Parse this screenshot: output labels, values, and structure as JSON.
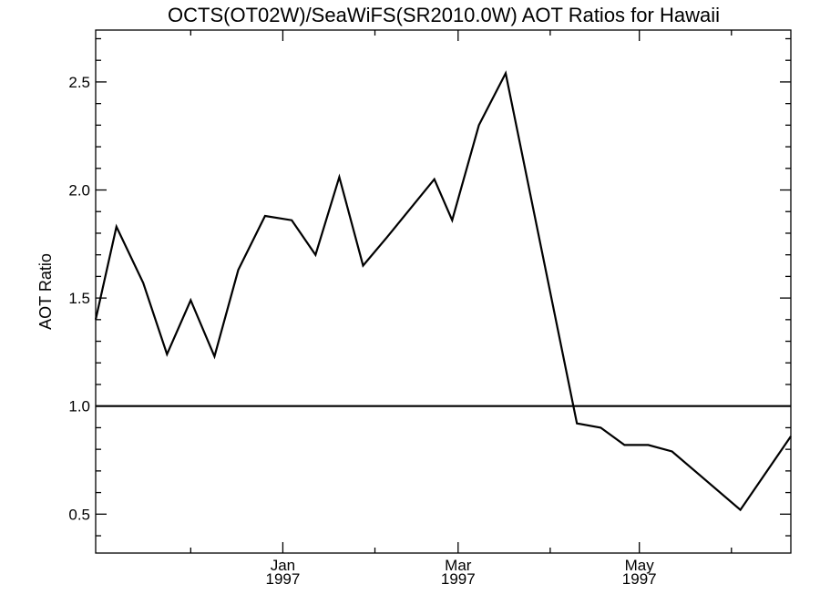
{
  "chart_data": {
    "type": "line",
    "title": "OCTS(OT02W)/SeaWiFS(SR2010.0W)  AOT Ratios for Hawaii",
    "xlabel": "",
    "ylabel": "AOT Ratio",
    "xlim": [
      "1996-10-30",
      "1997-06-21"
    ],
    "ylim": [
      0.32,
      2.74
    ],
    "yticks": [
      0.5,
      1.0,
      1.5,
      2.0,
      2.5
    ],
    "ytick_labels": [
      "0.5",
      "1.0",
      "1.5",
      "2.0",
      "2.5"
    ],
    "xticks": [
      {
        "date": "1997-01-01",
        "month": "Jan",
        "year": "1997"
      },
      {
        "date": "1997-03-01",
        "month": "Mar",
        "year": "1997"
      },
      {
        "date": "1997-05-01",
        "month": "May",
        "year": "1997"
      }
    ],
    "x_minor_tick_dates": [
      "1996-12-01",
      "1997-02-01",
      "1997-04-01",
      "1997-06-01"
    ],
    "y_minor_step": 0.1,
    "grid": false,
    "reference_line": {
      "y": 1.0
    },
    "series": [
      {
        "x": [
          "1996-10-30",
          "1996-11-06",
          "1996-11-15",
          "1996-11-23",
          "1996-12-01",
          "1996-12-09",
          "1996-12-17",
          "1996-12-26",
          "1997-01-04",
          "1997-01-12",
          "1997-01-20",
          "1997-01-28",
          "1997-02-05",
          "1997-02-21",
          "1997-02-27",
          "1997-03-08",
          "1997-03-17",
          "1997-04-10",
          "1997-04-18",
          "1997-04-26",
          "1997-05-04",
          "1997-05-12",
          "1997-06-04",
          "1997-06-21"
        ],
        "y": [
          1.4,
          1.83,
          1.57,
          1.24,
          1.49,
          1.23,
          1.63,
          1.88,
          1.86,
          1.7,
          2.06,
          1.65,
          1.78,
          2.05,
          1.86,
          2.3,
          2.54,
          0.92,
          0.9,
          0.82,
          0.82,
          0.79,
          0.52,
          0.86
        ]
      }
    ]
  }
}
